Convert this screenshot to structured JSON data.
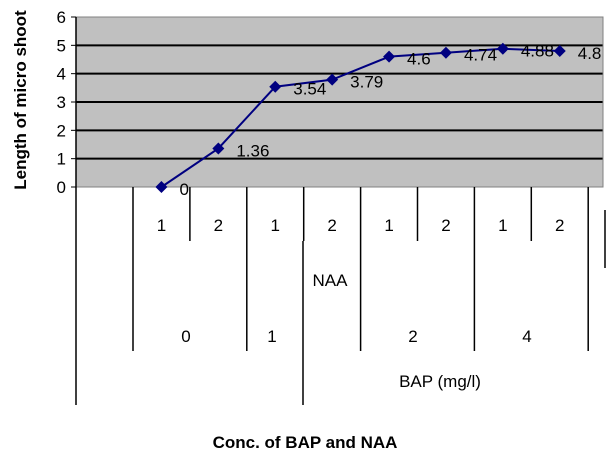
{
  "chart_data": {
    "type": "line",
    "ylabel": "Length of micro shoot",
    "xlabel": "Conc. of BAP and NAA",
    "ylim": [
      0,
      6
    ],
    "yticks": [
      0,
      1,
      2,
      3,
      4,
      5,
      6
    ],
    "grid": true,
    "plot_background": "#c0c0c0",
    "line_color": "#000080",
    "x_levels": {
      "naa_values": [
        "1",
        "2",
        "1",
        "2",
        "1",
        "2",
        "1",
        "2"
      ],
      "naa_label": "NAA",
      "bap_values": [
        "0",
        "1",
        "2",
        "4"
      ],
      "bap_label": "BAP (mg/l)"
    },
    "series": [
      {
        "values": [
          0,
          1.36,
          3.54,
          3.79,
          4.6,
          4.74,
          4.88,
          4.8
        ],
        "data_labels": [
          "0",
          "1.36",
          "3.54",
          "3.79",
          "4.6",
          "4.74",
          "4.88",
          "4.8"
        ]
      }
    ]
  }
}
